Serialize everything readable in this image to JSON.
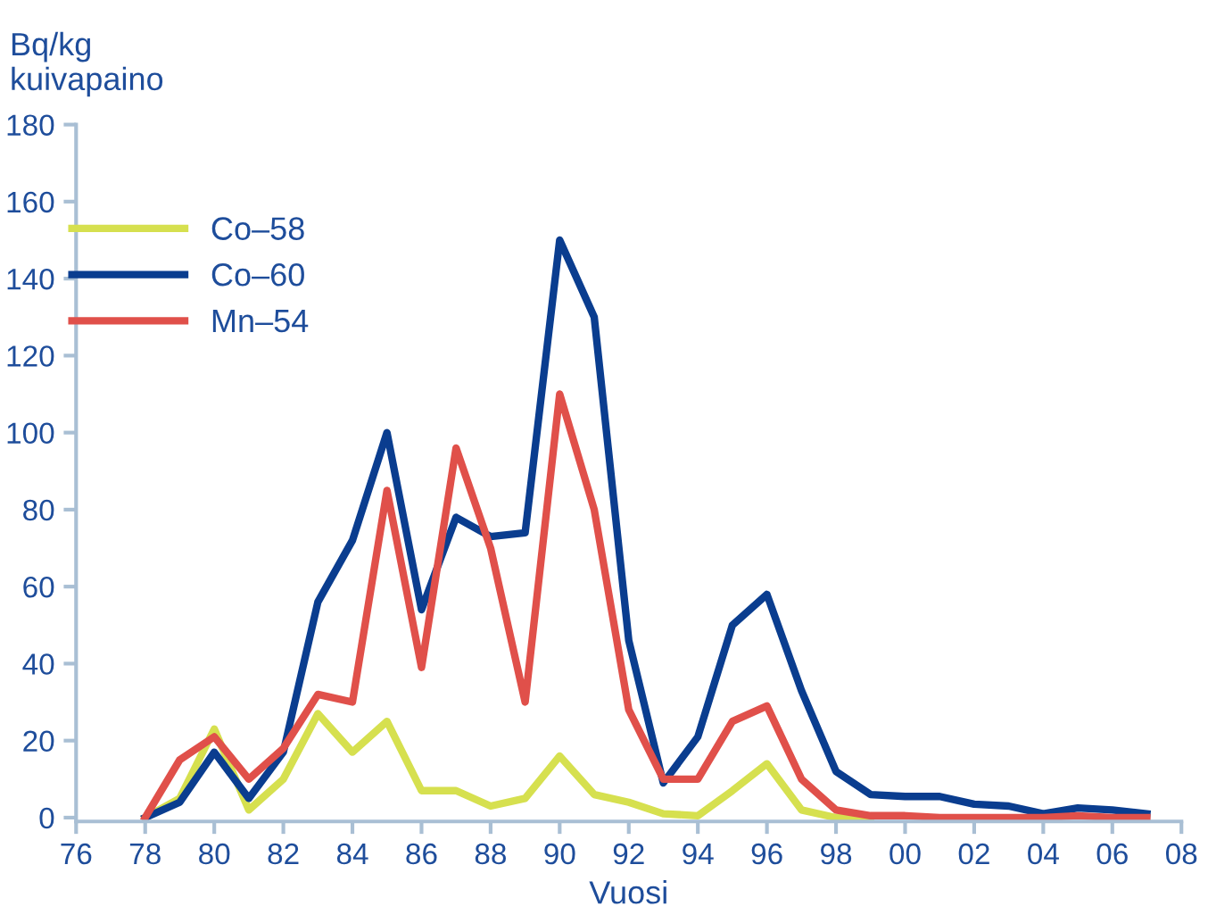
{
  "chart_data": {
    "type": "line",
    "ylabel": "Bq/kg\nkuivapaino",
    "xlabel": "Vuosi",
    "x": [
      1978,
      1979,
      1980,
      1981,
      1982,
      1983,
      1984,
      1985,
      1986,
      1987,
      1988,
      1989,
      1990,
      1991,
      1992,
      1993,
      1994,
      1995,
      1996,
      1997,
      1998,
      1999,
      2000,
      2001,
      2002,
      2003,
      2004,
      2005,
      2006,
      2007
    ],
    "series": [
      {
        "name": "Co–58",
        "color": "#d6e04f",
        "values": [
          0,
          5,
          23,
          2,
          10,
          27,
          17,
          25,
          7,
          7,
          3,
          5,
          16,
          6,
          4,
          1,
          0.5,
          7,
          14,
          2,
          0,
          0,
          null,
          null,
          null,
          null,
          null,
          null,
          null,
          null
        ]
      },
      {
        "name": "Co–60",
        "color": "#0a3d8f",
        "values": [
          0,
          4,
          17,
          5,
          17,
          56,
          72,
          100,
          54,
          78,
          73,
          74,
          150,
          130,
          46,
          9,
          21,
          50,
          58,
          33,
          12,
          6,
          5.5,
          5.5,
          3.5,
          3,
          1,
          2.5,
          2,
          1
        ]
      },
      {
        "name": "Mn–54",
        "color": "#e0504a",
        "values": [
          0,
          15,
          21,
          10,
          18,
          32,
          30,
          85,
          39,
          96,
          70,
          30,
          110,
          80,
          28,
          10,
          10,
          25,
          29,
          10,
          2,
          0.5,
          0.5,
          0,
          0,
          0,
          0,
          0.5,
          0,
          0
        ]
      }
    ],
    "xlim": [
      1976,
      2008
    ],
    "ylim": [
      -1,
      180
    ],
    "xticks": [
      {
        "value": 1976,
        "label": "76"
      },
      {
        "value": 1978,
        "label": "78"
      },
      {
        "value": 1980,
        "label": "80"
      },
      {
        "value": 1982,
        "label": "82"
      },
      {
        "value": 1984,
        "label": "84"
      },
      {
        "value": 1986,
        "label": "86"
      },
      {
        "value": 1988,
        "label": "88"
      },
      {
        "value": 1990,
        "label": "90"
      },
      {
        "value": 1992,
        "label": "92"
      },
      {
        "value": 1994,
        "label": "94"
      },
      {
        "value": 1996,
        "label": "96"
      },
      {
        "value": 1998,
        "label": "98"
      },
      {
        "value": 2000,
        "label": "00"
      },
      {
        "value": 2002,
        "label": "02"
      },
      {
        "value": 2004,
        "label": "04"
      },
      {
        "value": 2006,
        "label": "06"
      },
      {
        "value": 2008,
        "label": "08"
      }
    ],
    "yticks": [
      0,
      20,
      40,
      60,
      80,
      100,
      120,
      140,
      160,
      180
    ],
    "grid": false,
    "legend": "top left",
    "marker": "none",
    "line_style": "solid"
  }
}
